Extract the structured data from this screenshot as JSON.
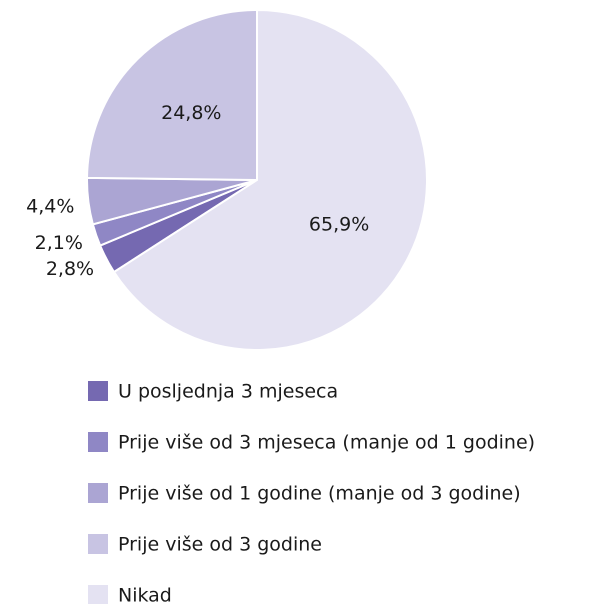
{
  "chart_data": {
    "type": "pie",
    "categories": [
      "U posljednja 3 mjeseca",
      "Prije više od 3 mjeseca (manje od 1 godine)",
      "Prije više od 1 godine (manje od 3 godine)",
      "Prije više od 3 godine",
      "Nikad"
    ],
    "values": [
      2.8,
      2.1,
      4.4,
      24.8,
      65.9
    ],
    "value_labels": [
      "2,8%",
      "2,1%",
      "4,4%",
      "24,8%",
      "65,9%"
    ],
    "colors": [
      "#7569b1",
      "#8f87c5",
      "#aba5d3",
      "#c8c4e3",
      "#e4e2f2"
    ],
    "legend": "bottom"
  }
}
